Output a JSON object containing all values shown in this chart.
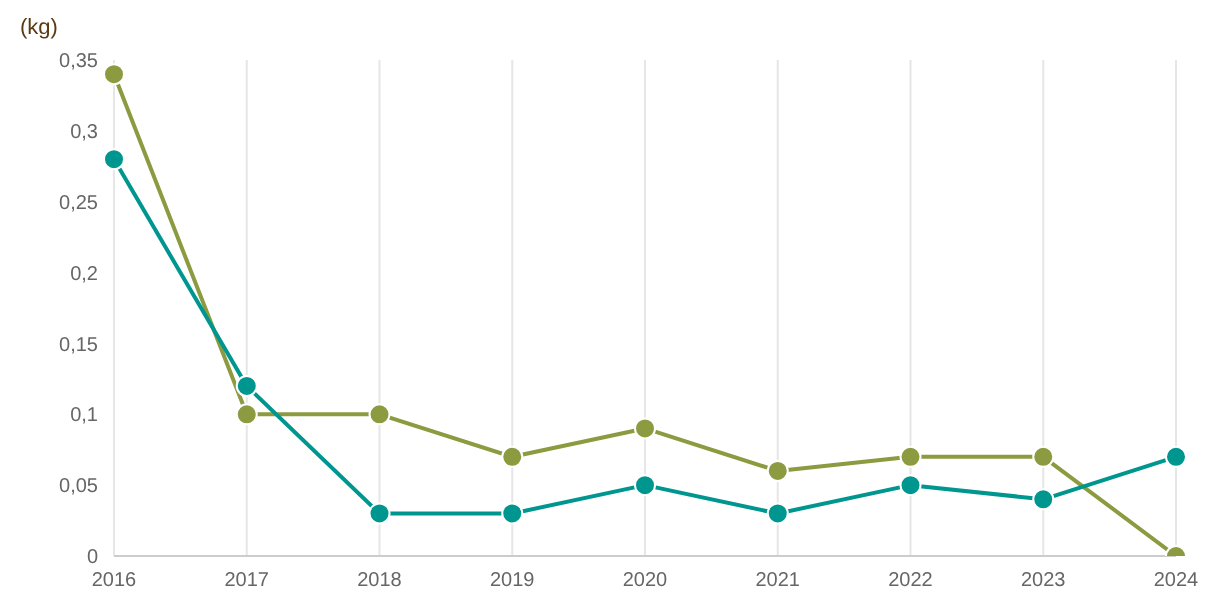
{
  "chart_data": {
    "type": "line",
    "ylabel": "(kg)",
    "categories": [
      "2016",
      "2017",
      "2018",
      "2019",
      "2020",
      "2021",
      "2022",
      "2023",
      "2024"
    ],
    "series": [
      {
        "color": "#8c9a40",
        "values": [
          0.34,
          0.1,
          0.1,
          0.07,
          0.09,
          0.06,
          0.07,
          0.07,
          0
        ]
      },
      {
        "color": "#009690",
        "values": [
          0.28,
          0.12,
          0.03,
          0.03,
          0.05,
          0.03,
          0.05,
          0.04,
          0.07
        ]
      }
    ],
    "ylim": [
      0,
      0.35
    ],
    "yticks": [
      {
        "value": 0,
        "label": "0"
      },
      {
        "value": 0.05,
        "label": "0,05"
      },
      {
        "value": 0.1,
        "label": "0,1"
      },
      {
        "value": 0.15,
        "label": "0,15"
      },
      {
        "value": 0.2,
        "label": "0,2"
      },
      {
        "value": 0.25,
        "label": "0,25"
      },
      {
        "value": 0.3,
        "label": "0,3"
      },
      {
        "value": 0.35,
        "label": "0,35"
      }
    ],
    "grid": "x",
    "legend": false,
    "marker": "circle",
    "line_style": "solid"
  }
}
